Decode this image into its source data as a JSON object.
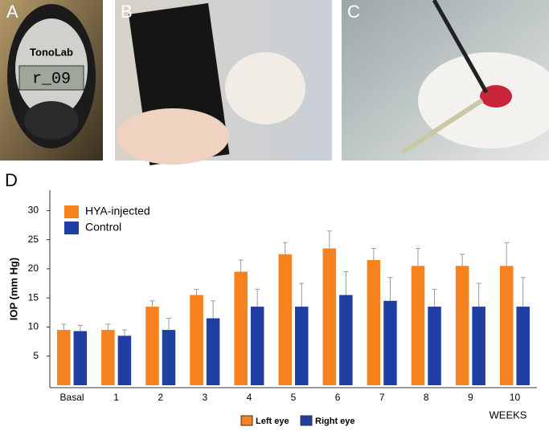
{
  "panel_labels": [
    "A",
    "B",
    "C",
    "D"
  ],
  "photo_a_texts": [
    "TonoLab",
    "r_09"
  ],
  "chart_data": {
    "type": "bar",
    "y_label": "IOP (mm Hg)",
    "x_label": "WEEKS",
    "categories": [
      "Basal",
      "1",
      "2",
      "3",
      "4",
      "5",
      "6",
      "7",
      "8",
      "9",
      "10"
    ],
    "series": [
      {
        "name": "HYA-injected",
        "color": "#f5821f",
        "values": [
          9.5,
          9.5,
          13.5,
          15.5,
          19.5,
          22.5,
          23.5,
          21.5,
          20.5,
          20.5,
          20.5
        ],
        "errors": [
          1,
          1,
          1,
          1,
          2,
          2,
          3,
          2,
          3,
          2,
          4
        ]
      },
      {
        "name": "Control",
        "color": "#1f3fa3",
        "values": [
          9.3,
          8.5,
          9.5,
          11.5,
          13.5,
          13.5,
          15.5,
          14.5,
          13.5,
          13.5,
          13.5
        ],
        "errors": [
          1,
          1,
          2,
          3,
          3,
          4,
          4,
          4,
          3,
          4,
          5
        ]
      }
    ],
    "bottom_legend": [
      "Left eye",
      "Right eye"
    ],
    "ylim": [
      0,
      33.5
    ],
    "yticks": [
      5,
      10,
      15,
      20,
      25,
      30
    ]
  }
}
